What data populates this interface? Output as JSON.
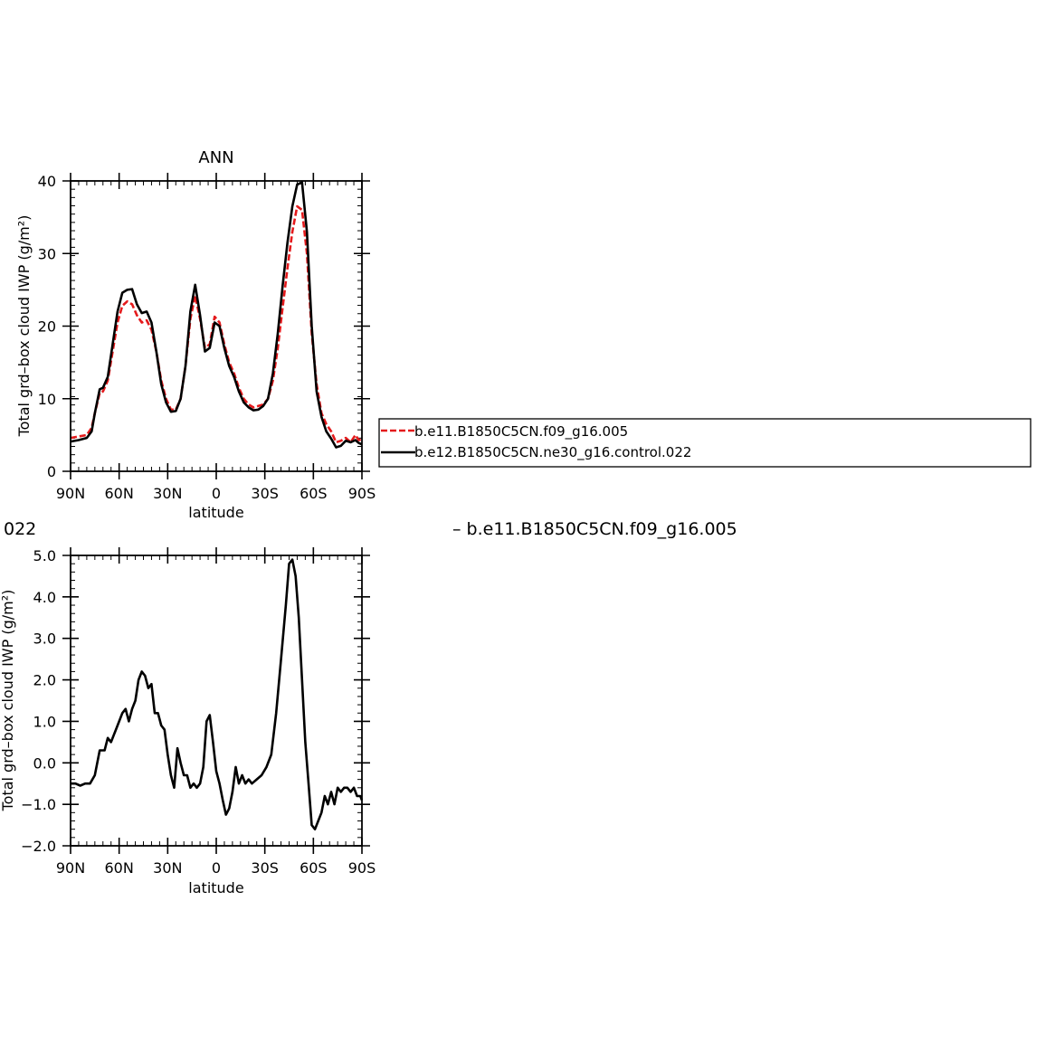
{
  "colors": {
    "red_series": "#e41a1c",
    "black_series": "#000000",
    "axis": "#000000"
  },
  "legend": {
    "entries": [
      {
        "label": "b.e11.B1850C5CN.f09_g16.005",
        "color": "#e41a1c",
        "dash": true
      },
      {
        "label": "b.e12.B1850C5CN.ne30_g16.control.022",
        "color": "#000000",
        "dash": false
      }
    ]
  },
  "lower_panel_header": {
    "left_fragment": "022",
    "right_text": "– b.e11.B1850C5CN.f09_g16.005"
  },
  "chart_data": [
    {
      "type": "line",
      "title": "ANN",
      "xlabel": "latitude",
      "ylabel": "Total grd–box cloud IWP (g/m²)",
      "xlim": [
        90,
        -90
      ],
      "ylim": [
        0,
        40
      ],
      "xticks": [
        90,
        60,
        30,
        0,
        -30,
        -60,
        -90
      ],
      "xtick_labels": [
        "90N",
        "60N",
        "30N",
        "0",
        "30S",
        "60S",
        "90S"
      ],
      "yticks": [
        0,
        10,
        20,
        30,
        40
      ],
      "ytick_labels": [
        "0",
        "10",
        "20",
        "30",
        "40"
      ],
      "series": [
        {
          "name": "b.e11.B1850C5CN.f09_g16.005",
          "color": "#e41a1c",
          "dashed": true,
          "x": [
            90,
            85,
            80,
            77,
            75,
            72,
            70,
            67,
            64,
            61,
            58,
            55,
            52,
            49,
            46,
            43,
            40,
            37,
            34,
            31,
            28,
            25,
            22,
            19,
            16,
            13,
            10,
            7,
            4,
            1,
            -2,
            -5,
            -8,
            -11,
            -14,
            -17,
            -20,
            -23,
            -26,
            -29,
            -32,
            -35,
            -38,
            -41,
            -44,
            -47,
            -50,
            -53,
            -56,
            -59,
            -62,
            -65,
            -68,
            -71,
            -74,
            -77,
            -80,
            -83,
            -86,
            -88,
            -90
          ],
          "y": [
            4.6,
            4.8,
            5.0,
            6.0,
            8.0,
            10.8,
            11.0,
            12.5,
            16.5,
            20.5,
            22.8,
            23.4,
            23.0,
            21.5,
            20.5,
            20.8,
            19.5,
            16.5,
            12.5,
            10.0,
            8.5,
            8.5,
            10.0,
            14.5,
            21.0,
            24.2,
            21.0,
            17.0,
            17.5,
            21.3,
            20.5,
            17.5,
            15.0,
            13.5,
            11.5,
            10.0,
            9.2,
            8.8,
            9.0,
            9.2,
            10.0,
            12.5,
            17.0,
            22.5,
            28.0,
            33.0,
            36.5,
            36.0,
            30.0,
            19.0,
            12.0,
            8.0,
            6.5,
            5.5,
            4.0,
            4.2,
            4.6,
            4.0,
            5.0,
            4.3,
            4.4
          ]
        },
        {
          "name": "b.e12.B1850C5CN.ne30_g16.control.022",
          "color": "#000000",
          "dashed": false,
          "x": [
            90,
            85,
            80,
            77,
            75,
            72,
            70,
            67,
            64,
            61,
            58,
            55,
            52,
            49,
            46,
            43,
            40,
            37,
            34,
            31,
            28,
            25,
            22,
            19,
            16,
            13,
            10,
            7,
            4,
            1,
            -2,
            -5,
            -8,
            -11,
            -14,
            -17,
            -20,
            -23,
            -26,
            -29,
            -32,
            -35,
            -38,
            -41,
            -44,
            -47,
            -50,
            -53,
            -56,
            -59,
            -62,
            -65,
            -68,
            -71,
            -74,
            -77,
            -80,
            -83,
            -86,
            -88,
            -90
          ],
          "y": [
            4.1,
            4.3,
            4.6,
            5.5,
            8.0,
            11.3,
            11.5,
            13.0,
            17.5,
            22.0,
            24.6,
            25.0,
            25.1,
            23.0,
            21.8,
            22.0,
            20.5,
            16.5,
            12.0,
            9.5,
            8.2,
            8.3,
            10.0,
            14.5,
            22.0,
            25.7,
            21.5,
            16.5,
            17.0,
            20.5,
            20.0,
            17.0,
            14.5,
            13.0,
            11.0,
            9.5,
            8.8,
            8.4,
            8.5,
            9.0,
            10.0,
            13.5,
            19.0,
            25.5,
            31.5,
            36.5,
            39.5,
            39.8,
            33.0,
            20.0,
            11.0,
            7.5,
            5.5,
            4.5,
            3.3,
            3.5,
            4.2,
            4.0,
            4.3,
            3.9,
            3.7
          ]
        }
      ]
    },
    {
      "type": "line",
      "title": "",
      "xlabel": "latitude",
      "ylabel": "Total grd–box cloud IWP (g/m²)",
      "xlim": [
        90,
        -90
      ],
      "ylim": [
        -2.0,
        5.0
      ],
      "xticks": [
        90,
        60,
        30,
        0,
        -30,
        -60,
        -90
      ],
      "xtick_labels": [
        "90N",
        "60N",
        "30N",
        "0",
        "30S",
        "60S",
        "90S"
      ],
      "yticks": [
        -2,
        -1,
        0,
        1,
        2,
        3,
        4,
        5
      ],
      "ytick_labels": [
        "−2.0",
        "−1.0",
        "0.0",
        "1.0",
        "2.0",
        "3.0",
        "4.0",
        "5.0"
      ],
      "series": [
        {
          "name": "",
          "color": "#000000",
          "dashed": false,
          "x": [
            90,
            87,
            84,
            81,
            78,
            75,
            72,
            69,
            67,
            65,
            62,
            60,
            58,
            56,
            54,
            52,
            50,
            48,
            46,
            44,
            42,
            40,
            38,
            36,
            34,
            32,
            30,
            28,
            26,
            24,
            22,
            20,
            18,
            16,
            14,
            12,
            10,
            8,
            6,
            4,
            2,
            0,
            -2,
            -4,
            -6,
            -8,
            -10,
            -12,
            -14,
            -16,
            -18,
            -20,
            -22,
            -25,
            -28,
            -31,
            -34,
            -37,
            -40,
            -43,
            -45,
            -47,
            -49,
            -51,
            -53,
            -55,
            -57,
            -59,
            -61,
            -63,
            -65,
            -67,
            -69,
            -71,
            -73,
            -75,
            -77,
            -79,
            -81,
            -83,
            -85,
            -87,
            -89,
            -90
          ],
          "y": [
            -0.5,
            -0.5,
            -0.55,
            -0.5,
            -0.5,
            -0.3,
            0.3,
            0.3,
            0.6,
            0.5,
            0.8,
            1.0,
            1.2,
            1.3,
            1.0,
            1.3,
            1.5,
            2.0,
            2.2,
            2.1,
            1.8,
            1.9,
            1.2,
            1.2,
            0.9,
            0.8,
            0.2,
            -0.3,
            -0.6,
            0.35,
            0.0,
            -0.3,
            -0.3,
            -0.6,
            -0.5,
            -0.6,
            -0.5,
            -0.1,
            1.0,
            1.15,
            0.5,
            -0.2,
            -0.5,
            -0.9,
            -1.25,
            -1.1,
            -0.7,
            -0.1,
            -0.5,
            -0.3,
            -0.5,
            -0.4,
            -0.5,
            -0.4,
            -0.3,
            -0.1,
            0.2,
            1.2,
            2.5,
            3.8,
            4.8,
            4.9,
            4.5,
            3.5,
            2.0,
            0.5,
            -0.5,
            -1.5,
            -1.6,
            -1.4,
            -1.2,
            -0.8,
            -1.0,
            -0.7,
            -1.0,
            -0.6,
            -0.7,
            -0.6,
            -0.6,
            -0.7,
            -0.6,
            -0.8,
            -0.8,
            -0.9
          ]
        }
      ]
    }
  ]
}
